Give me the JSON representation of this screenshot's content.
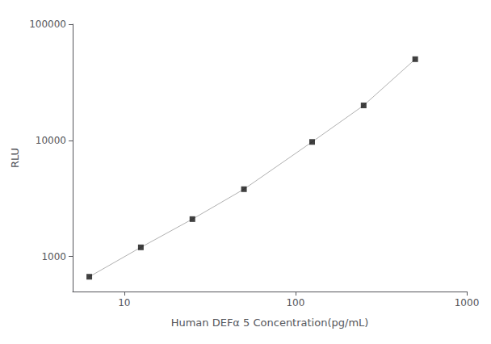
{
  "chart_data": {
    "type": "line",
    "xlabel": "Human DEFα 5 Concentration(pg/mL)",
    "ylabel": "RLU",
    "x": [
      6.25,
      12.5,
      25,
      50,
      125,
      250,
      500
    ],
    "series": [
      {
        "type": "line",
        "color": "#b0b0b0",
        "values": [
          670,
          1200,
          2100,
          3800,
          9700,
          20000,
          50000
        ]
      },
      {
        "type": "scatter",
        "color": "#111111",
        "marker": "square",
        "values": [
          670,
          1200,
          2100,
          3800,
          9700,
          20000,
          50000
        ]
      }
    ],
    "log": true,
    "xlim": [
      5,
      1000
    ],
    "ylim": [
      500,
      100000
    ],
    "xticks": [
      10,
      100,
      1000
    ],
    "yticks": [
      1000,
      10000,
      100000
    ],
    "grid": false
  }
}
